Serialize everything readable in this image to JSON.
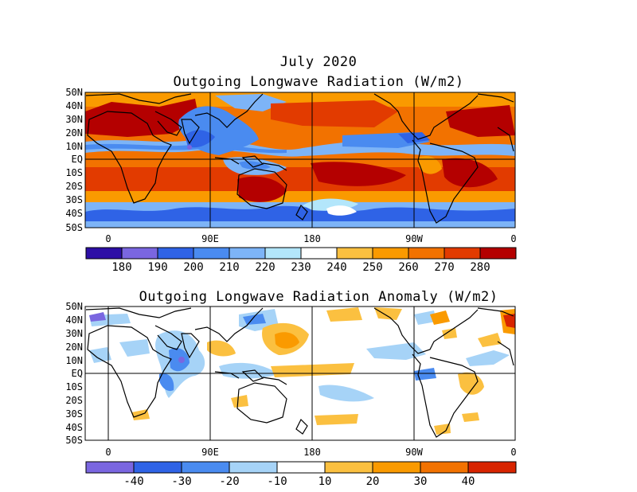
{
  "header": {
    "line1": "July 2020",
    "line2": "Outgoing Longwave Radiation (W/m2)"
  },
  "anomaly": {
    "title": "Outgoing Longwave Radiation Anomaly (W/m2)"
  },
  "lat_labels": [
    "50N",
    "40N",
    "30N",
    "20N",
    "10N",
    "EQ",
    "10S",
    "20S",
    "30S",
    "40S",
    "50S"
  ],
  "lon_labels": [
    "0",
    "90E",
    "180",
    "90W",
    "0"
  ],
  "colorbar_top": {
    "labels": [
      "180",
      "190",
      "200",
      "210",
      "220",
      "230",
      "240",
      "250",
      "260",
      "270",
      "280"
    ],
    "colors": [
      "#2d0fa6",
      "#7a66e0",
      "#2f63e6",
      "#4a8bf0",
      "#7db4f7",
      "#b3e6fb",
      "#ffffff",
      "#fbc040",
      "#fa9a00",
      "#f27200",
      "#e23b00",
      "#b40000"
    ]
  },
  "colorbar_bottom": {
    "labels": [
      "-40",
      "-30",
      "-20",
      "-10",
      "10",
      "20",
      "30",
      "40"
    ],
    "colors": [
      "#7a66e0",
      "#2f63e6",
      "#4a8bf0",
      "#a6d3f7",
      "#ffffff",
      "#fbc040",
      "#fa9a00",
      "#f27200",
      "#d82400"
    ]
  }
}
